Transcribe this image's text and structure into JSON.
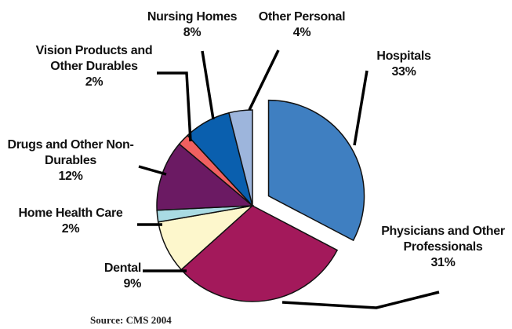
{
  "chart_data": {
    "type": "pie",
    "categories": [
      "Hospitals",
      "Physicians and Other Professionals",
      "Dental",
      "Home Health Care",
      "Drugs and Other Non-Durables",
      "Vision Products and Other Durables",
      "Nursing Homes",
      "Other Personal"
    ],
    "values": [
      33,
      31,
      9,
      2,
      12,
      2,
      8,
      4
    ],
    "value_labels": [
      "33%",
      "31%",
      "9%",
      "2%",
      "12%",
      "2%",
      "8%",
      "4%"
    ],
    "colors": [
      "#3f7fc1",
      "#a3195b",
      "#fdf7cc",
      "#a9dbe3",
      "#6b1a63",
      "#f06060",
      "#0a5fae",
      "#9db5dc"
    ],
    "exploded": [
      "Hospitals"
    ],
    "source": "Source: CMS 2004"
  }
}
